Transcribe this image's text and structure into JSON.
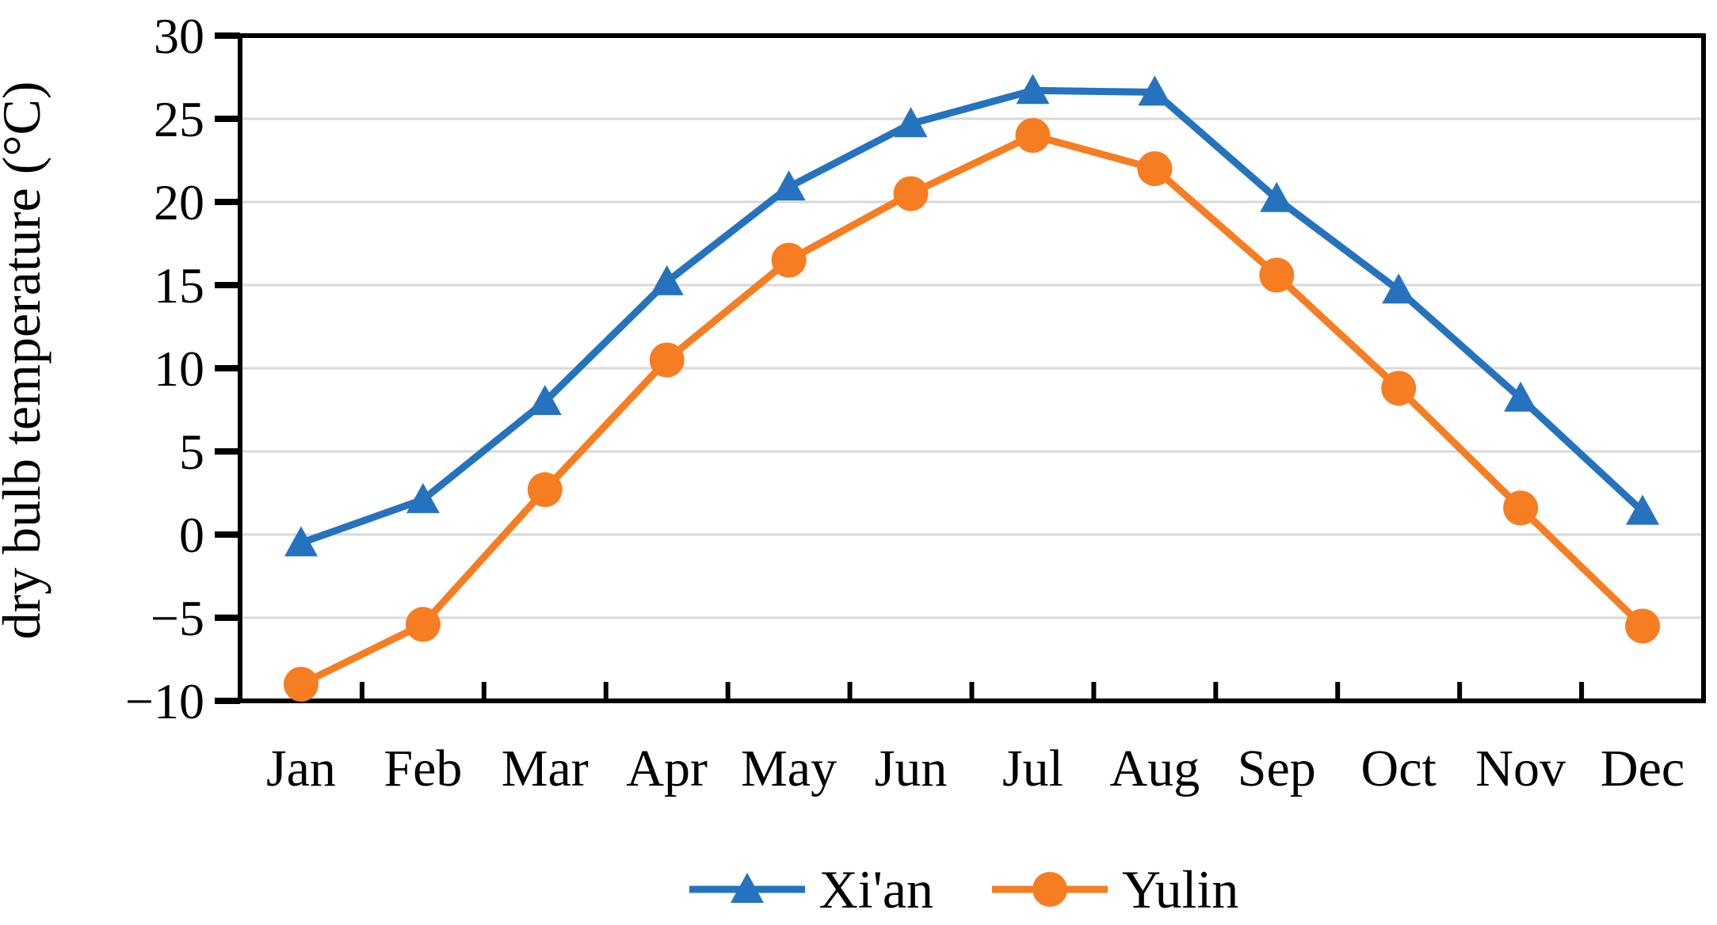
{
  "chart_data": {
    "type": "line",
    "title": "",
    "xlabel": "",
    "ylabel": "dry bulb temperature (°C)",
    "categories": [
      "Jan",
      "Feb",
      "Mar",
      "Apr",
      "May",
      "Jun",
      "Jul",
      "Aug",
      "Sep",
      "Oct",
      "Nov",
      "Dec"
    ],
    "series": [
      {
        "name": "Xi'an",
        "marker": "triangle",
        "color": "#2573BE",
        "values": [
          -0.5,
          2.1,
          8.0,
          15.2,
          20.9,
          24.7,
          26.7,
          26.6,
          20.2,
          14.7,
          8.2,
          1.4
        ]
      },
      {
        "name": "Yulin",
        "marker": "circle",
        "color": "#F67D22",
        "values": [
          -9.0,
          -5.4,
          2.7,
          10.5,
          16.5,
          20.5,
          24.0,
          22.0,
          15.6,
          8.8,
          1.6,
          -5.5
        ]
      }
    ],
    "ylim": [
      -10,
      30
    ],
    "ytick_values": [
      30,
      25,
      20,
      15,
      10,
      5,
      0,
      -5,
      -10
    ],
    "ytick_labels": [
      "30",
      "25",
      "20",
      "15",
      "10",
      "5",
      "0",
      "−5",
      "−10"
    ],
    "grid": "horizontal-major",
    "legend_position": "bottom-center",
    "colors": {
      "grid": "#D9D9D9",
      "axis": "#000000",
      "text": "#000000",
      "background": "#FFFFFF"
    }
  }
}
